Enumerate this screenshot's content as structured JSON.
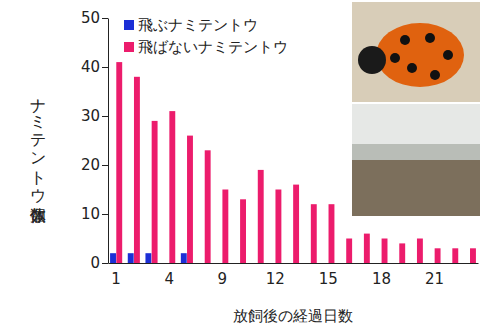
{
  "chart_data": {
    "type": "bar",
    "x_label": "放飼後の経過日数",
    "y_label": "ナミテントウ個体数",
    "categories": [
      "1",
      null,
      null,
      "4",
      null,
      null,
      "9",
      null,
      null,
      "12",
      null,
      null,
      "15",
      null,
      null,
      "18",
      null,
      null,
      "21",
      null,
      null
    ],
    "series": [
      {
        "name": "飛ぶナミテントウ",
        "color": "#1c2fd6",
        "values": [
          2,
          2,
          2,
          0,
          2,
          0,
          0,
          0,
          0,
          0,
          0,
          0,
          0,
          0,
          0,
          0,
          0,
          0,
          0,
          0,
          0
        ]
      },
      {
        "name": "飛ばないナミテントウ",
        "color": "#ec1c6c",
        "values": [
          41,
          38,
          29,
          31,
          26,
          23,
          15,
          13,
          19,
          15,
          16,
          12,
          12,
          5,
          6,
          5,
          4,
          5,
          3,
          3,
          3
        ]
      }
    ],
    "ylim": [
      0,
      50
    ],
    "yticks": [
      0,
      10,
      20,
      30,
      40,
      50
    ],
    "legend": "top-left",
    "grid": false
  }
}
